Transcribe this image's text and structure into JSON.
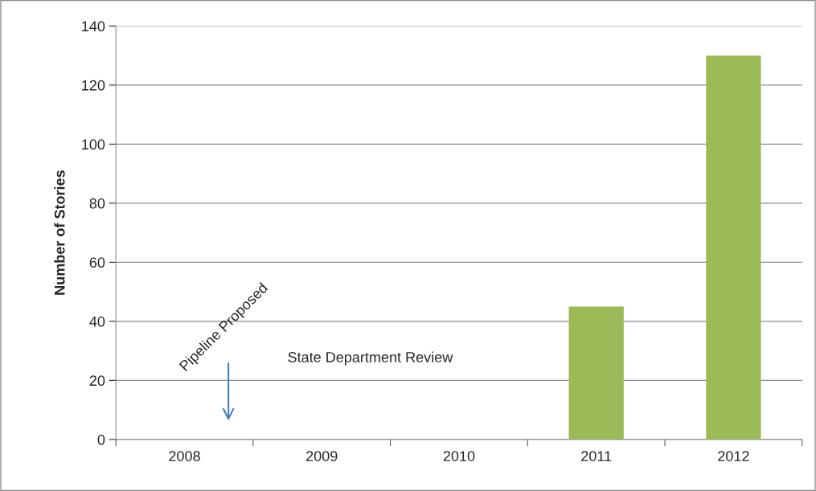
{
  "chart_data": {
    "type": "bar",
    "ylabel": "Number of Stories",
    "categories": [
      "2008",
      "2009",
      "2010",
      "2011",
      "2012"
    ],
    "values": [
      0,
      0,
      0,
      45,
      130
    ],
    "color": "#9bbb59",
    "ylim": [
      0,
      140
    ],
    "yticks": [
      0,
      20,
      40,
      60,
      80,
      100,
      120,
      140
    ],
    "grid": "y",
    "annotations": [
      "Pipeline Proposed",
      "State Department Review"
    ]
  }
}
